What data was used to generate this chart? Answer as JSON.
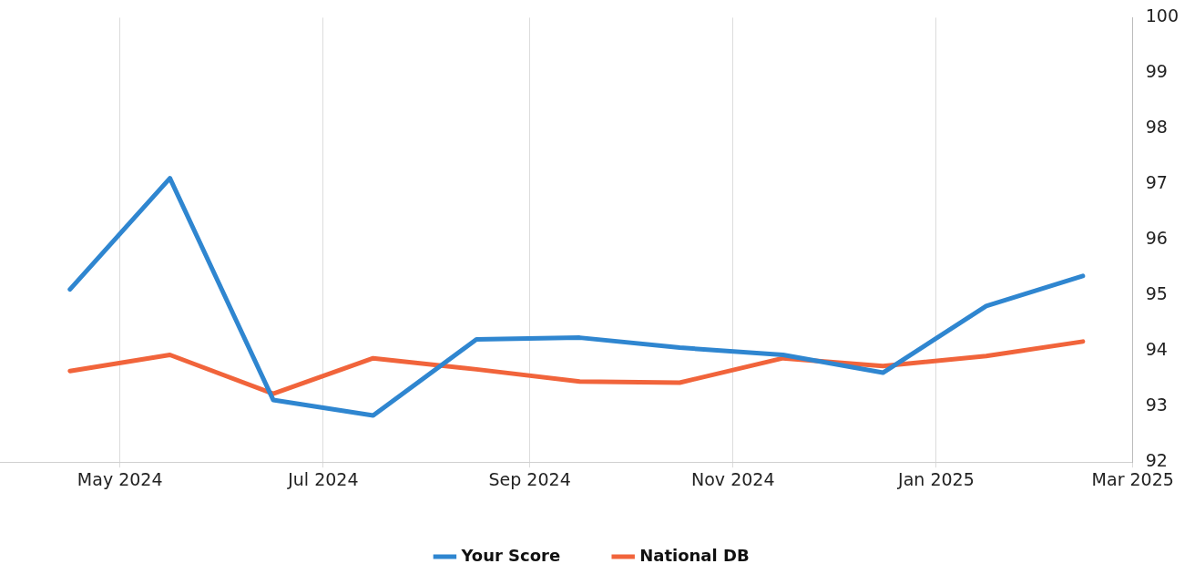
{
  "chart_data": {
    "type": "line",
    "x": [
      "2024-04-16",
      "2024-05-16",
      "2024-06-16",
      "2024-07-16",
      "2024-08-16",
      "2024-09-16",
      "2024-10-16",
      "2024-11-16",
      "2024-12-16",
      "2025-01-16",
      "2025-02-14"
    ],
    "series": [
      {
        "name": "Your Score",
        "color": "#2f86d0",
        "values": [
          95.11,
          97.11,
          93.12,
          92.84,
          94.21,
          94.24,
          94.06,
          93.93,
          93.61,
          94.81,
          95.35
        ]
      },
      {
        "name": "National DB",
        "color": "#f1643b",
        "values": [
          93.64,
          93.93,
          93.23,
          93.87,
          93.67,
          93.45,
          93.43,
          93.87,
          93.73,
          93.91,
          94.17
        ]
      }
    ],
    "xlim": [
      "2024-03-26",
      "2025-03-01"
    ],
    "xticks": [
      {
        "value": "2024-05-01",
        "label": "May 2024"
      },
      {
        "value": "2024-07-01",
        "label": "Jul 2024"
      },
      {
        "value": "2024-09-01",
        "label": "Sep 2024"
      },
      {
        "value": "2024-11-01",
        "label": "Nov 2024"
      },
      {
        "value": "2025-01-01",
        "label": "Jan 2025"
      },
      {
        "value": "2025-03-01",
        "label": "Mar 2025"
      }
    ],
    "ylim": [
      92,
      100
    ],
    "yticks": [
      92,
      93,
      94,
      95,
      96,
      97,
      98,
      99,
      100
    ],
    "grid": "x",
    "legend": "bottom",
    "marker": "none",
    "line_style": "solid"
  }
}
